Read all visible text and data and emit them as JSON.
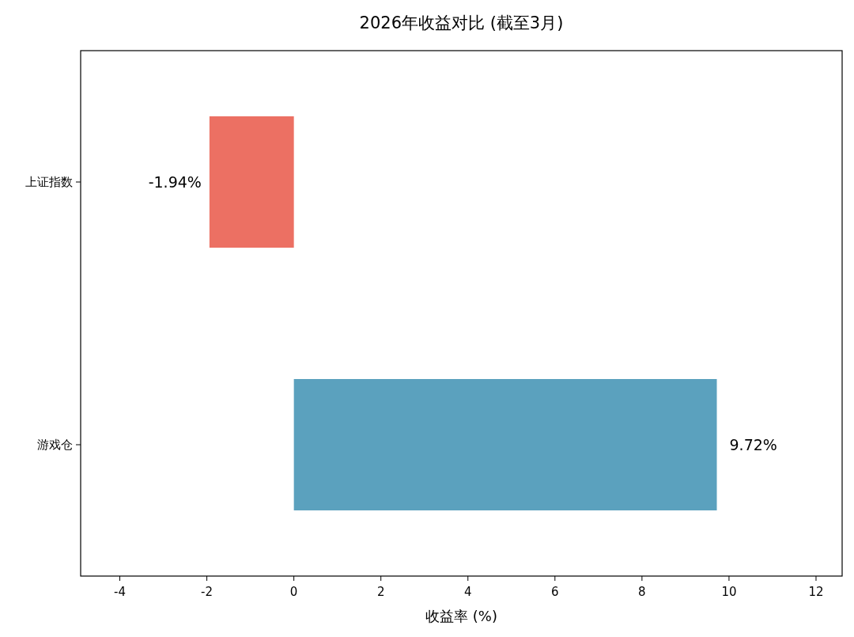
{
  "chart_data": {
    "type": "bar",
    "orientation": "horizontal",
    "title": "2026年收益对比 (截至3月)",
    "xlabel": "收益率 (%)",
    "categories": [
      "上证指数",
      "游戏仓"
    ],
    "values": [
      -1.94,
      9.72
    ],
    "colors": [
      "#ec7063",
      "#5ba1be"
    ],
    "value_labels": [
      "-1.94%",
      "9.72%"
    ],
    "xlim": [
      -4.9,
      12.6
    ],
    "xticks": [
      -4,
      -2,
      0,
      2,
      4,
      6,
      8,
      10,
      12
    ],
    "grid": false
  }
}
